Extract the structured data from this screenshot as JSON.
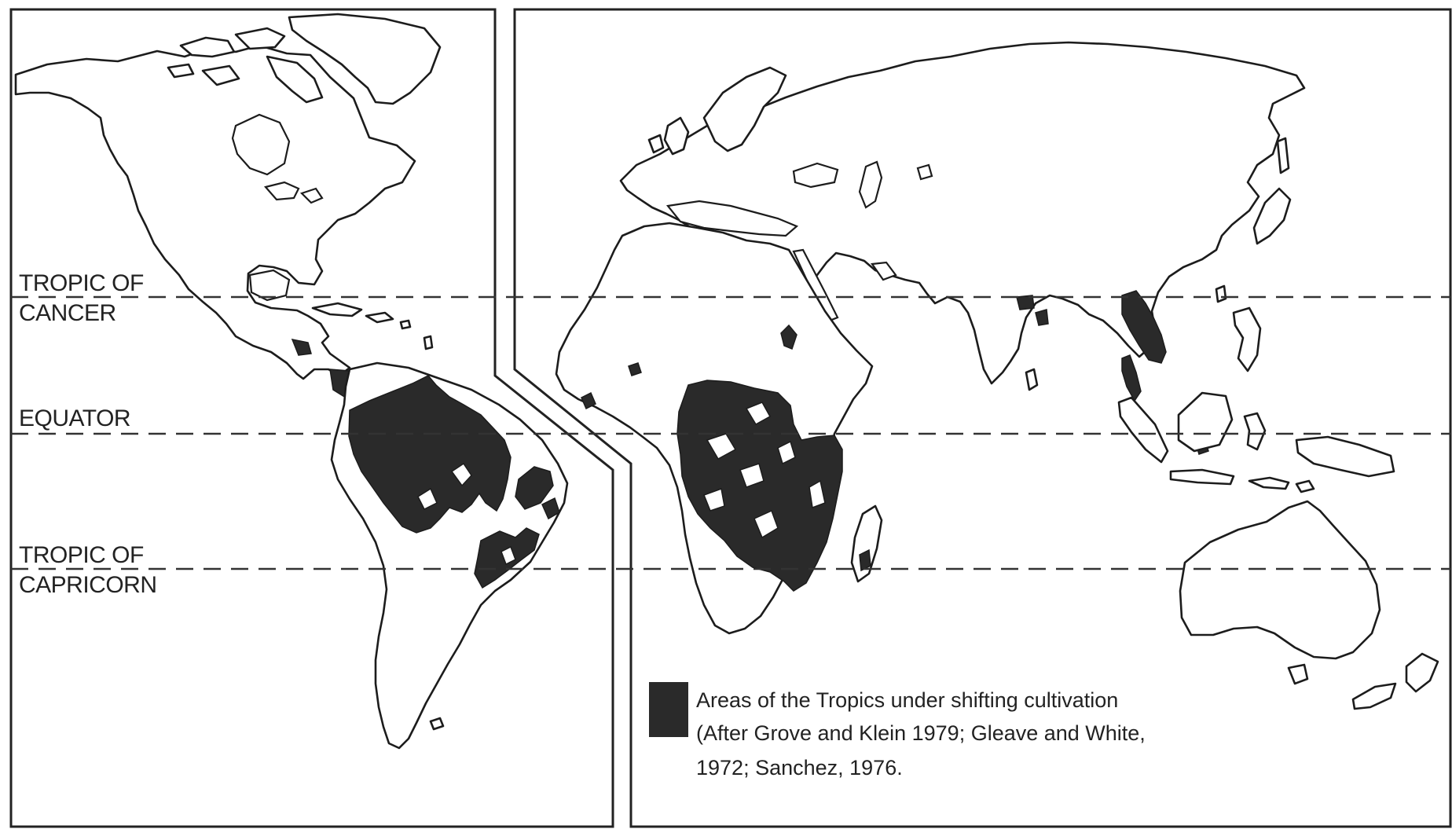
{
  "latitude_labels": {
    "tropic_of_cancer": [
      "TROPIC OF",
      "CANCER"
    ],
    "equator": [
      "EQUATOR"
    ],
    "tropic_of_capricorn": [
      "TROPIC OF",
      "CAPRICORN"
    ]
  },
  "legend": {
    "lines": [
      "Areas of the Tropics under shifting cultivation",
      "(After Grove and Klein 1979; Gleave and White,",
      "1972; Sanchez, 1976."
    ],
    "swatch_color": "#2a2a2a"
  },
  "colors": {
    "land": "#ffffff",
    "outline": "#1c1c1c",
    "shifting_cultivation": "#2a2a2a"
  }
}
